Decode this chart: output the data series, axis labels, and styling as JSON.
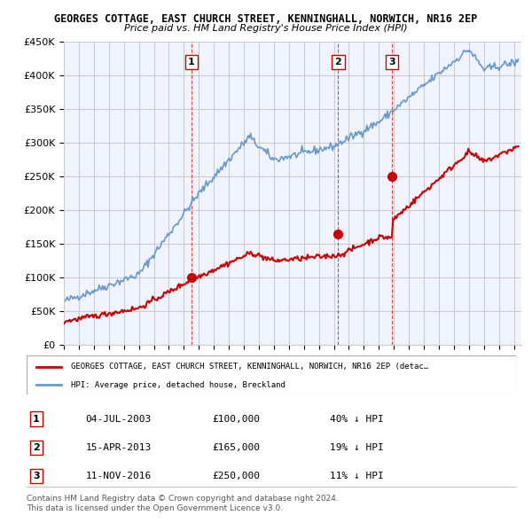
{
  "title": "GEORGES COTTAGE, EAST CHURCH STREET, KENNINGHALL, NORWICH, NR16 2EP",
  "subtitle": "Price paid vs. HM Land Registry's House Price Index (HPI)",
  "ylim": [
    0,
    450000
  ],
  "yticks": [
    0,
    50000,
    100000,
    150000,
    200000,
    250000,
    300000,
    350000,
    400000,
    450000
  ],
  "ytick_labels": [
    "£0",
    "£50K",
    "£100K",
    "£150K",
    "£200K",
    "£250K",
    "£300K",
    "£350K",
    "£400K",
    "£450K"
  ],
  "xlim_start": 1995.0,
  "xlim_end": 2025.5,
  "transactions": [
    {
      "date_num": 2003.5,
      "price": 100000,
      "label": "1"
    },
    {
      "date_num": 2013.29,
      "price": 165000,
      "label": "2"
    },
    {
      "date_num": 2016.87,
      "price": 250000,
      "label": "3"
    }
  ],
  "transaction_details": [
    {
      "num": "1",
      "date": "04-JUL-2003",
      "price": "£100,000",
      "hpi_note": "40% ↓ HPI"
    },
    {
      "num": "2",
      "date": "15-APR-2013",
      "price": "£165,000",
      "hpi_note": "19% ↓ HPI"
    },
    {
      "num": "3",
      "date": "11-NOV-2016",
      "price": "£250,000",
      "hpi_note": "11% ↓ HPI"
    }
  ],
  "legend_red_label": "GEORGES COTTAGE, EAST CHURCH STREET, KENNINGHALL, NORWICH, NR16 2EP (detac…",
  "legend_blue_label": "HPI: Average price, detached house, Breckland",
  "footer_line1": "Contains HM Land Registry data © Crown copyright and database right 2024.",
  "footer_line2": "This data is licensed under the Open Government Licence v3.0.",
  "red_color": "#cc0000",
  "blue_color": "#6699cc",
  "dashed_red_color": "#cc0000",
  "bg_color": "#f0f4ff",
  "grid_color": "#cccccc",
  "box_outline_color": "#cc0000"
}
